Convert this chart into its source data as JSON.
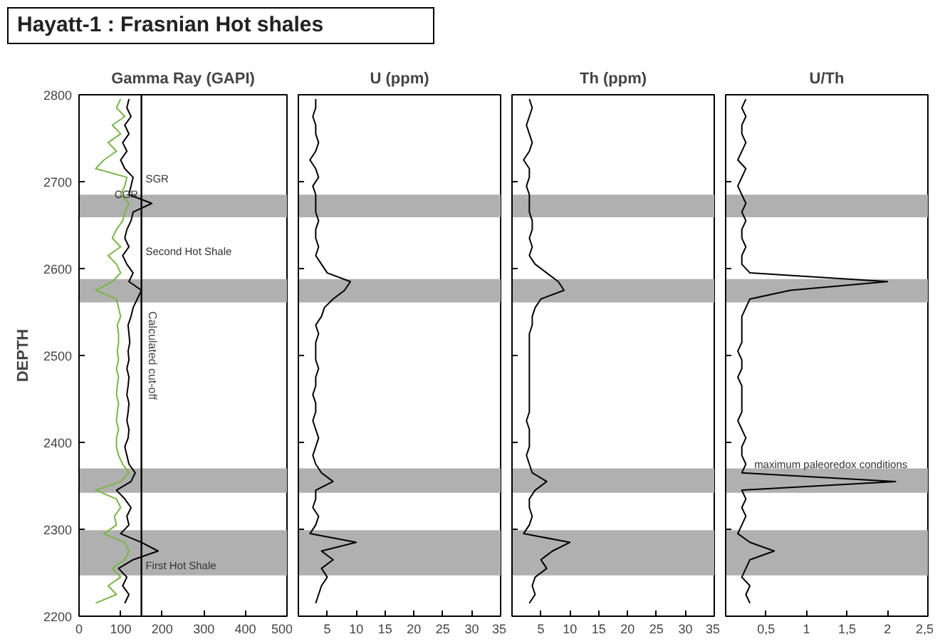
{
  "chart_data": [
    {
      "type": "line",
      "title": "Hayatt-1 : Frasnian Hot shales",
      "xlabel": "Gamma Ray (GAPI)",
      "ylabel": "DEPTH",
      "xlim": [
        0,
        500
      ],
      "xticks": [
        0,
        100,
        200,
        300,
        400,
        500
      ],
      "ylim": [
        2200,
        2800
      ],
      "yticks": [
        2200,
        2300,
        2400,
        2500,
        2600,
        2700,
        2800
      ],
      "series": [
        {
          "color": "#000000",
          "x": [
            110,
            120,
            105,
            115,
            95,
            130,
            190,
            150,
            100,
            120,
            115,
            125,
            110,
            90,
            125,
            135,
            120,
            115,
            110,
            118,
            120,
            115,
            118,
            120,
            115,
            118,
            120,
            115,
            120,
            118,
            122,
            120,
            118,
            125,
            130,
            140,
            150,
            120,
            130,
            115,
            105,
            120,
            110,
            115,
            125,
            130,
            175,
            120,
            125,
            130,
            110,
            100,
            115,
            105,
            120,
            110,
            125,
            115,
            120
          ],
          "values": [
            2215,
            2225,
            2235,
            2245,
            2255,
            2265,
            2275,
            2285,
            2295,
            2305,
            2315,
            2325,
            2335,
            2345,
            2355,
            2365,
            2375,
            2385,
            2395,
            2405,
            2415,
            2425,
            2435,
            2445,
            2455,
            2465,
            2475,
            2485,
            2495,
            2505,
            2515,
            2525,
            2535,
            2545,
            2555,
            2565,
            2575,
            2585,
            2595,
            2605,
            2615,
            2625,
            2635,
            2645,
            2655,
            2665,
            2675,
            2685,
            2695,
            2705,
            2715,
            2725,
            2735,
            2745,
            2755,
            2765,
            2775,
            2785,
            2795
          ]
        },
        {
          "color": "#7ab648",
          "x": [
            40,
            90,
            70,
            100,
            80,
            110,
            120,
            110,
            60,
            90,
            85,
            100,
            90,
            40,
            100,
            120,
            105,
            95,
            90,
            90,
            95,
            90,
            92,
            95,
            90,
            92,
            95,
            90,
            95,
            92,
            95,
            95,
            92,
            100,
            95,
            90,
            40,
            80,
            100,
            90,
            70,
            100,
            80,
            90,
            105,
            110,
            120,
            100,
            110,
            115,
            40,
            60,
            90,
            70,
            100,
            80,
            110,
            90,
            100
          ],
          "values": [
            2215,
            2225,
            2235,
            2245,
            2255,
            2265,
            2275,
            2285,
            2295,
            2305,
            2315,
            2325,
            2335,
            2345,
            2355,
            2365,
            2375,
            2385,
            2395,
            2405,
            2415,
            2425,
            2435,
            2445,
            2455,
            2465,
            2475,
            2485,
            2495,
            2505,
            2515,
            2525,
            2535,
            2545,
            2555,
            2565,
            2575,
            2585,
            2595,
            2605,
            2615,
            2625,
            2635,
            2645,
            2655,
            2665,
            2675,
            2685,
            2695,
            2705,
            2715,
            2725,
            2735,
            2745,
            2755,
            2765,
            2775,
            2785,
            2795
          ]
        }
      ],
      "bands": [
        {
          "axis": "y",
          "from": 2659,
          "to": 2685,
          "color": "#b0b0b0"
        },
        {
          "axis": "y",
          "from": 2561,
          "to": 2588,
          "color": "#b0b0b0"
        },
        {
          "axis": "y",
          "from": 2342,
          "to": 2370,
          "color": "#b0b0b0"
        },
        {
          "axis": "y",
          "from": 2247,
          "to": 2299,
          "color": "#b0b0b0"
        }
      ],
      "ref_lines": [
        {
          "axis": "x",
          "value": 150,
          "label": "Calculated cut-off",
          "color": "#000000"
        }
      ],
      "annotations": [
        {
          "text": "SGR",
          "x": 160,
          "y": 2703
        },
        {
          "text": "CGR",
          "x": 85,
          "y": 2685
        },
        {
          "text": "Second Hot Shale",
          "x": 160,
          "y": 2620
        },
        {
          "text": "First Hot Shale",
          "x": 160,
          "y": 2258
        }
      ]
    },
    {
      "type": "line",
      "xlabel": "U (ppm)",
      "xlim": [
        0,
        35
      ],
      "xticks": [
        5,
        10,
        15,
        20,
        25,
        30,
        35
      ],
      "ylim": [
        2200,
        2800
      ],
      "yticks": [
        2200,
        2300,
        2400,
        2500,
        2600,
        2700,
        2800
      ],
      "tick_labels": "x",
      "series": [
        {
          "color": "#000000",
          "x": [
            3,
            3.5,
            4,
            5,
            4,
            6,
            4,
            10,
            2,
            3,
            3.5,
            2.5,
            3,
            3,
            6,
            4,
            3,
            2.5,
            3,
            3.5,
            3,
            2.5,
            3,
            3,
            2.5,
            3,
            3,
            3.5,
            3,
            3,
            3,
            3.5,
            3,
            4,
            4.5,
            6,
            8,
            9,
            5,
            4,
            3,
            3.5,
            3,
            3,
            3.5,
            3,
            3,
            3,
            2.5,
            3.5,
            3,
            2,
            3,
            3.5,
            3,
            3,
            2.5,
            3,
            3
          ],
          "values": [
            2215,
            2225,
            2235,
            2245,
            2255,
            2265,
            2275,
            2285,
            2295,
            2305,
            2315,
            2325,
            2335,
            2345,
            2355,
            2365,
            2375,
            2385,
            2395,
            2405,
            2415,
            2425,
            2435,
            2445,
            2455,
            2465,
            2475,
            2485,
            2495,
            2505,
            2515,
            2525,
            2535,
            2545,
            2555,
            2565,
            2575,
            2585,
            2595,
            2605,
            2615,
            2625,
            2635,
            2645,
            2655,
            2665,
            2675,
            2685,
            2695,
            2705,
            2715,
            2725,
            2735,
            2745,
            2755,
            2765,
            2775,
            2785,
            2795
          ]
        }
      ],
      "bands": [
        {
          "axis": "y",
          "from": 2659,
          "to": 2685,
          "color": "#b0b0b0"
        },
        {
          "axis": "y",
          "from": 2561,
          "to": 2588,
          "color": "#b0b0b0"
        },
        {
          "axis": "y",
          "from": 2342,
          "to": 2370,
          "color": "#b0b0b0"
        },
        {
          "axis": "y",
          "from": 2247,
          "to": 2299,
          "color": "#b0b0b0"
        }
      ]
    },
    {
      "type": "line",
      "xlabel": "Th (ppm)",
      "xlim": [
        0,
        35
      ],
      "xticks": [
        5,
        10,
        15,
        20,
        25,
        30,
        35
      ],
      "ylim": [
        2200,
        2800
      ],
      "yticks": [
        2200,
        2300,
        2400,
        2500,
        2600,
        2700,
        2800
      ],
      "tick_labels": "x",
      "series": [
        {
          "color": "#000000",
          "x": [
            3,
            4,
            3.5,
            4,
            6,
            5,
            7,
            10,
            2,
            3,
            3.5,
            3,
            3,
            4,
            6,
            3.5,
            3,
            2.5,
            3,
            3,
            3,
            2.5,
            3,
            3,
            3,
            3,
            3,
            3,
            3,
            3,
            3,
            3,
            3.5,
            3.5,
            4,
            5,
            9,
            8,
            6,
            4,
            3,
            3.5,
            3,
            3.5,
            3.5,
            3,
            3,
            3,
            2.5,
            3,
            3,
            2,
            3,
            3.5,
            3,
            2.5,
            3,
            3.5,
            3
          ],
          "values": [
            2215,
            2225,
            2235,
            2245,
            2255,
            2265,
            2275,
            2285,
            2295,
            2305,
            2315,
            2325,
            2335,
            2345,
            2355,
            2365,
            2375,
            2385,
            2395,
            2405,
            2415,
            2425,
            2435,
            2445,
            2455,
            2465,
            2475,
            2485,
            2495,
            2505,
            2515,
            2525,
            2535,
            2545,
            2555,
            2565,
            2575,
            2585,
            2595,
            2605,
            2615,
            2625,
            2635,
            2645,
            2655,
            2665,
            2675,
            2685,
            2695,
            2705,
            2715,
            2725,
            2735,
            2745,
            2755,
            2765,
            2775,
            2785,
            2795
          ]
        }
      ],
      "bands": [
        {
          "axis": "y",
          "from": 2659,
          "to": 2685,
          "color": "#b0b0b0"
        },
        {
          "axis": "y",
          "from": 2561,
          "to": 2588,
          "color": "#b0b0b0"
        },
        {
          "axis": "y",
          "from": 2342,
          "to": 2370,
          "color": "#b0b0b0"
        },
        {
          "axis": "y",
          "from": 2247,
          "to": 2299,
          "color": "#b0b0b0"
        }
      ]
    },
    {
      "type": "line",
      "xlabel": "U/Th",
      "xlim": [
        0,
        2.5
      ],
      "xticks": [
        {
          "value": 0.5,
          "label": "0,5"
        },
        1,
        {
          "value": 1.5,
          "label": "1,5"
        },
        2,
        {
          "value": 2.5,
          "label": "2,5"
        }
      ],
      "ylim": [
        2200,
        2800
      ],
      "yticks": [
        2200,
        2300,
        2400,
        2500,
        2600,
        2700,
        2800
      ],
      "tick_labels": "x",
      "series": [
        {
          "color": "#000000",
          "x": [
            0.3,
            0.25,
            0.3,
            0.2,
            0.25,
            0.3,
            0.6,
            0.3,
            0.15,
            0.2,
            0.25,
            0.2,
            0.25,
            0.2,
            2.1,
            0.2,
            0.25,
            0.2,
            0.2,
            0.25,
            0.2,
            0.15,
            0.2,
            0.2,
            0.2,
            0.2,
            0.15,
            0.2,
            0.2,
            0.15,
            0.2,
            0.2,
            0.2,
            0.2,
            0.25,
            0.3,
            0.8,
            2.0,
            0.3,
            0.2,
            0.2,
            0.25,
            0.2,
            0.2,
            0.25,
            0.2,
            0.25,
            0.2,
            0.15,
            0.2,
            0.25,
            0.15,
            0.2,
            0.25,
            0.2,
            0.2,
            0.25,
            0.2,
            0.25
          ],
          "values": [
            2215,
            2225,
            2235,
            2245,
            2255,
            2265,
            2275,
            2285,
            2295,
            2305,
            2315,
            2325,
            2335,
            2345,
            2355,
            2365,
            2375,
            2385,
            2395,
            2405,
            2415,
            2425,
            2435,
            2445,
            2455,
            2465,
            2475,
            2485,
            2495,
            2505,
            2515,
            2525,
            2535,
            2545,
            2555,
            2565,
            2575,
            2585,
            2595,
            2605,
            2615,
            2625,
            2635,
            2645,
            2655,
            2665,
            2675,
            2685,
            2695,
            2705,
            2715,
            2725,
            2735,
            2745,
            2755,
            2765,
            2775,
            2785,
            2795
          ]
        }
      ],
      "bands": [
        {
          "axis": "y",
          "from": 2659,
          "to": 2685,
          "color": "#b0b0b0"
        },
        {
          "axis": "y",
          "from": 2561,
          "to": 2588,
          "color": "#b0b0b0"
        },
        {
          "axis": "y",
          "from": 2342,
          "to": 2370,
          "color": "#b0b0b0"
        },
        {
          "axis": "y",
          "from": 2247,
          "to": 2299,
          "color": "#b0b0b0"
        }
      ],
      "annotations": [
        {
          "text": "maximum paleoredox conditions",
          "x": 1.3,
          "y": 2375
        }
      ]
    }
  ]
}
